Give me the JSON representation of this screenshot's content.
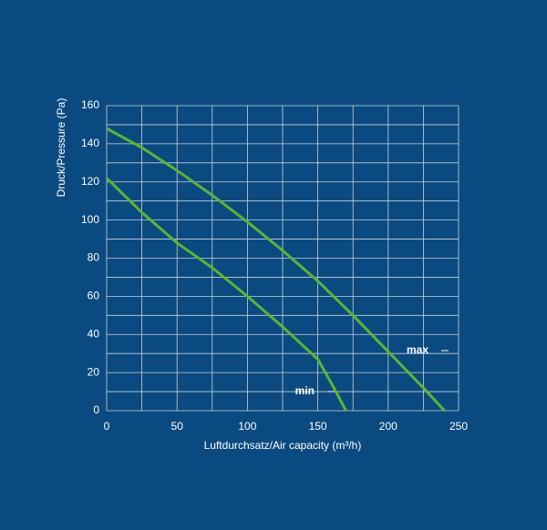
{
  "chart_data": {
    "type": "line",
    "xlabel": "Luftdurchsatz/Air capacity (m³/h)",
    "ylabel": "Druck/Pressure (Pa)",
    "xlim": [
      0,
      250
    ],
    "xticks": [
      0,
      50,
      100,
      150,
      200,
      250
    ],
    "xminor": [
      25,
      75,
      125,
      175,
      225
    ],
    "ylim": [
      0,
      160
    ],
    "yticks": [
      0,
      20,
      40,
      60,
      80,
      100,
      120,
      140,
      160
    ],
    "yminor": [
      10,
      30,
      50,
      70,
      90,
      110,
      130,
      150
    ],
    "grid": true,
    "series": [
      {
        "name": "max",
        "color": "#5cb531",
        "x": [
          0,
          25,
          50,
          75,
          100,
          125,
          150,
          175,
          200,
          225,
          240
        ],
        "values": [
          148,
          138,
          126,
          113,
          99,
          84,
          68,
          50,
          31,
          12,
          0
        ]
      },
      {
        "name": "min",
        "color": "#5cb531",
        "x": [
          0,
          25,
          50,
          75,
          100,
          125,
          150,
          160,
          170
        ],
        "values": [
          122,
          104,
          88,
          75,
          60,
          44,
          27,
          14,
          0
        ]
      }
    ]
  }
}
